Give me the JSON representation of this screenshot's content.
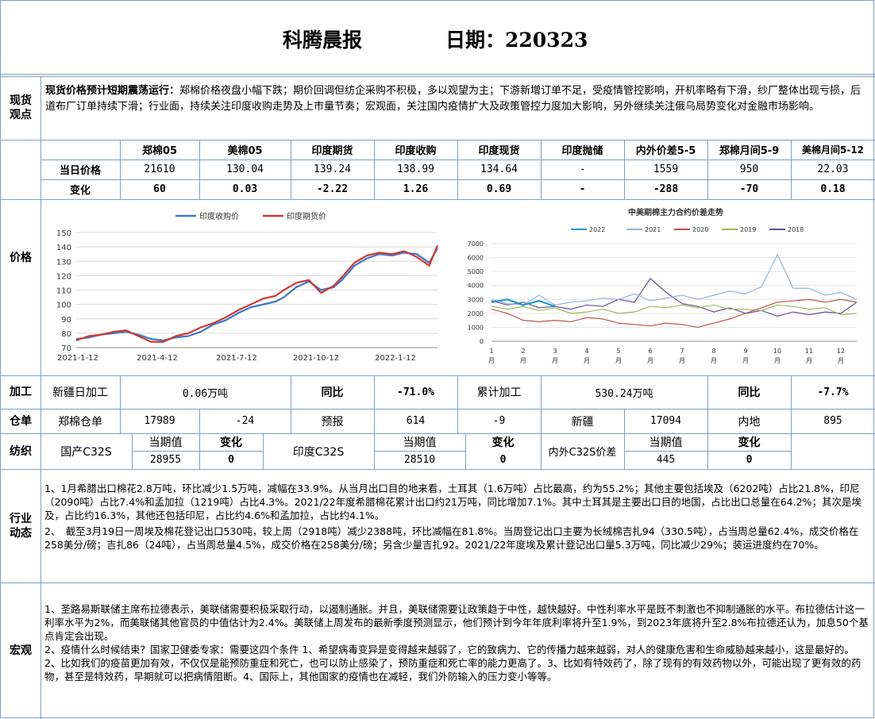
{
  "header": {
    "title": "科腾晨报",
    "date_label": "日期：220323"
  },
  "spot": {
    "section": "现货\n观点",
    "bold_lead": "现货价格预计短期震荡运行：",
    "text": "郑棉价格夜盘小幅下跌；期价回调但纺企采购不积极，多以观望为主；下游新增订单不足，受疫情管控影响，开机率略有下滑，纱厂整体出现亏损，后道布厂订单持续下滑；行业面，持续关注印度收购走势及上市量节奏；宏观面，关注国内疫情扩大及政策管控力度加大影响，另外继续关注俄乌局势变化对金融市场影响。"
  },
  "price": {
    "section": "价格",
    "headers": [
      "郑棉05",
      "美棉05",
      "印度期货",
      "印度收购",
      "印度现货",
      "印度抛储",
      "内外价差5-5",
      "郑棉月间5-9",
      "美棉月间5-12"
    ],
    "row1_label": "当日价格",
    "row1": [
      "21610",
      "130.04",
      "139.24",
      "138.99",
      "134.64",
      "-",
      "1559",
      "950",
      "22.03"
    ],
    "row2_label": "变化",
    "row2": [
      "60",
      "0.03",
      "-2.22",
      "1.26",
      "0.69",
      "-",
      "-288",
      "-70",
      "0.18"
    ]
  },
  "chart_data": [
    {
      "type": "line",
      "title": "",
      "legend_position": "top",
      "series": [
        {
          "name": "印度收购价",
          "color": "#3c78c8"
        },
        {
          "name": "印度期货价",
          "color": "#d03830"
        }
      ],
      "x_tick_labels": [
        "2021-1-12",
        "2021-4-12",
        "2021-7-12",
        "2021-10-12",
        "2022-1-12"
      ],
      "ylim": [
        70,
        150
      ],
      "y_ticks": [
        70,
        80,
        90,
        100,
        110,
        120,
        130,
        140,
        150
      ],
      "x": [
        0,
        15,
        30,
        45,
        60,
        75,
        90,
        105,
        120,
        135,
        150,
        165,
        180,
        195,
        210,
        225,
        240,
        250,
        265,
        280,
        295,
        310,
        320,
        335,
        350,
        365,
        380,
        395,
        410,
        425,
        435
      ],
      "purchase": [
        76,
        77,
        79,
        80,
        81,
        79,
        76,
        75,
        77,
        78,
        81,
        86,
        89,
        94,
        98,
        100,
        102,
        105,
        112,
        116,
        110,
        112,
        117,
        127,
        132,
        135,
        134,
        136,
        135,
        129,
        139
      ],
      "futures": [
        75,
        78,
        79,
        81,
        82,
        78,
        74,
        74,
        78,
        80,
        84,
        87,
        91,
        96,
        100,
        104,
        106,
        110,
        115,
        117,
        108,
        113,
        119,
        129,
        134,
        136,
        135,
        137,
        133,
        127,
        141
      ]
    },
    {
      "type": "line",
      "title": "中美期棉主力合约价差走势",
      "legend_position": "top",
      "series": [
        {
          "name": "2022",
          "color": "#1f9bd0"
        },
        {
          "name": "2021",
          "color": "#9ab0d8"
        },
        {
          "name": "2020",
          "color": "#c0504d"
        },
        {
          "name": "2019",
          "color": "#9bbb59"
        },
        {
          "name": "2018",
          "color": "#6a4fa0"
        }
      ],
      "ylim": [
        0,
        7000
      ],
      "y_ticks": [
        0,
        1000,
        2000,
        3000,
        4000,
        5000,
        6000,
        7000
      ],
      "months": [
        "1月",
        "2月",
        "3月",
        "4月",
        "5月",
        "6月",
        "7月",
        "8月",
        "9月",
        "10月",
        "11月",
        "12月"
      ],
      "x": [
        1,
        1.5,
        2,
        2.5,
        3,
        3.5,
        4,
        4.5,
        5,
        5.5,
        6,
        6.5,
        7,
        7.5,
        8,
        8.5,
        9,
        9.5,
        10,
        10.5,
        11,
        11.5,
        12,
        12.5
      ],
      "y2022": [
        2800,
        3000,
        2600,
        2900,
        2500,
        null,
        null,
        null,
        null,
        null,
        null,
        null,
        null,
        null,
        null,
        null,
        null,
        null,
        null,
        null,
        null,
        null,
        null,
        null
      ],
      "y2021": [
        3000,
        2700,
        2600,
        3300,
        2600,
        2800,
        2900,
        3100,
        3000,
        3400,
        2900,
        3100,
        3300,
        3000,
        3300,
        3600,
        3400,
        3900,
        6200,
        3800,
        3800,
        3300,
        3500,
        3000
      ],
      "y2020": [
        2300,
        2000,
        1500,
        1400,
        1500,
        1400,
        1700,
        1600,
        1300,
        1200,
        1100,
        1300,
        1200,
        1000,
        1300,
        1600,
        2000,
        2400,
        2800,
        2900,
        3000,
        2800,
        3000,
        2800
      ],
      "y2019": [
        2500,
        2300,
        2500,
        2200,
        2400,
        2000,
        2100,
        2300,
        2000,
        2100,
        2500,
        2400,
        2600,
        2400,
        2600,
        2300,
        2300,
        2200,
        2600,
        2500,
        2300,
        2400,
        1900,
        2000
      ],
      "y2018": [
        2900,
        2600,
        2800,
        2400,
        2500,
        2300,
        2600,
        2500,
        3000,
        2800,
        4500,
        3500,
        2700,
        2500,
        2100,
        2400,
        2000,
        2200,
        1800,
        2100,
        1900,
        2100,
        2000,
        2800
      ]
    }
  ],
  "processing": {
    "section": "加工",
    "xinjiang_label": "新疆日加工",
    "xinjiang_value": "0.06万吨",
    "yoy_label": "同比",
    "yoy_value": "-71.0%",
    "cum_label": "累计加工",
    "cum_value": "530.24万吨",
    "yoy2_label": "同比",
    "yoy2_value": "-7.7%"
  },
  "warehouse": {
    "section": "仓单",
    "label": "郑棉仓单",
    "value": "17989",
    "change": "-24",
    "forecast_label": "预报",
    "forecast_value": "614",
    "forecast_change": "-9",
    "xj_label": "新疆",
    "xj_value": "17094",
    "inland_label": "内地",
    "inland_value": "895"
  },
  "spinning": {
    "section": "纺织",
    "domestic_label": "国产C32S",
    "india_label": "印度C32S",
    "spread_label": "内外C32S价差",
    "current_label": "当期值",
    "change_label": "变化",
    "domestic_value": "28955",
    "domestic_change": "0",
    "india_value": "28510",
    "india_change": "0",
    "spread_value": "445",
    "spread_change": "0"
  },
  "industry": {
    "section": "行业\n动态",
    "p1": "1、1月希腊出口棉花2.8万吨，环比减少1.5万吨，减幅在33.9%。从当月出口目的地来看，土耳其（1.6万吨）占比最高，约为55.2%；其他主要包括埃及（6202吨）占比21.8%，印尼（2090吨）占比7.4%和孟加拉（1219吨）占比4.3%。2021/22年度希腊棉花累计出口约21万吨，同比增加7.1%。其中土耳其是主要出口目的地国，占比出口总量在64.2%；其次是埃及，占比约16.3%，其他还包括印尼，占比约4.6%和孟加拉，占比约4.1%。",
    "p2": "2、　截至3月19日一周埃及棉花登记出口530吨，较上周（2918吨）减少2388吨，环比减幅在81.8%。当周登记出口主要为长绒棉吉扎94（330.5吨），占当周总量62.4%，成交价格在258美分/磅；吉扎86（24吨），占当周总量4.5%，成交价格在258美分/磅；另含少量吉扎92。2021/22年度埃及累计登记出口量5.3万吨，同比减少29%；装运进度约在70%。"
  },
  "macro": {
    "section": "宏观",
    "p1": "1、圣路易斯联储主席布拉德表示，美联储需要积极采取行动，以遏制通胀。并且，美联储需要让政策趋于中性，越快越好。中性利率水平是既不刺激也不抑制通胀的水平。布拉德估计这一利率水平为2%，而美联储其他官员的中值估计为2.4%。美联储上周发布的最新季度预测显示，他们预计到今年年底利率将升至1.9%，到2023年底将升至2.8%布拉德还认为，加息50个基点肯定会出现。",
    "p2": "2、疫情什么时候结束？国家卫健委专家：需要这四个条件 1、希望病毒变异是变得越来越弱了，它的致病力、它的传播力越来越弱，对人的健康危害和生命威胁越来越小，这是最好的。2、比如我们的疫苗更加有效，不仅仅是能预防重症和死亡，也可以防止感染了，预防重症和死亡率的能力更高了。3、比如有特效药了，除了现有的有效药物以外，可能出现了更有效的药物，甚至是特效药，早期就可以把病情阻断。4、国际上，其他国家的疫情也在减轻，我们外防输入的压力变小等等。"
  }
}
